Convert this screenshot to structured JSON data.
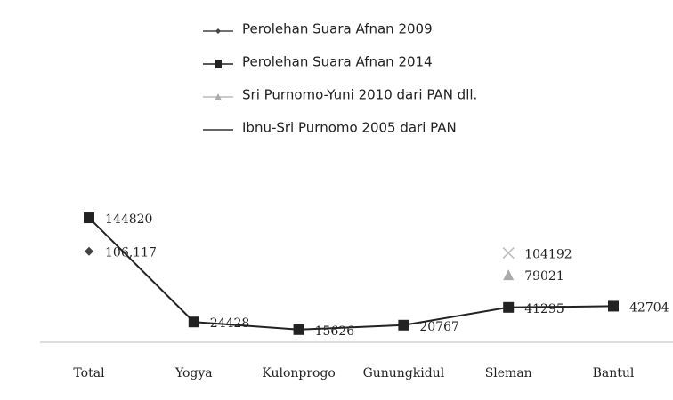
{
  "chart_data": {
    "type": "line",
    "categories": [
      "Total",
      "Yogya",
      "Kulonprogo",
      "Gunungkidul",
      "Sleman",
      "Bantul"
    ],
    "series": [
      {
        "name": "Perolehan Suara Afnan 2009",
        "color": "#444444",
        "marker": "diamond",
        "values": [
          106117,
          null,
          null,
          null,
          null,
          null
        ],
        "value_labels": [
          "106,117",
          null,
          null,
          null,
          null,
          null
        ]
      },
      {
        "name": "Perolehan Suara Afnan 2014",
        "color": "#222222",
        "marker": "square",
        "values": [
          144820,
          24428,
          15626,
          20767,
          41295,
          42704
        ]
      },
      {
        "name": "Sri Purnomo-Yuni 2010 dari PAN dll.",
        "color": "#aaaaaa",
        "marker": "triangle",
        "values": [
          null,
          null,
          null,
          null,
          79021,
          null
        ]
      },
      {
        "name": "Ibnu-Sri Purnomo 2005 dari PAN",
        "color": "#333333",
        "marker": "x",
        "values": [
          null,
          null,
          null,
          null,
          104192,
          null
        ]
      }
    ],
    "ylim": [
      0,
      150000
    ]
  }
}
